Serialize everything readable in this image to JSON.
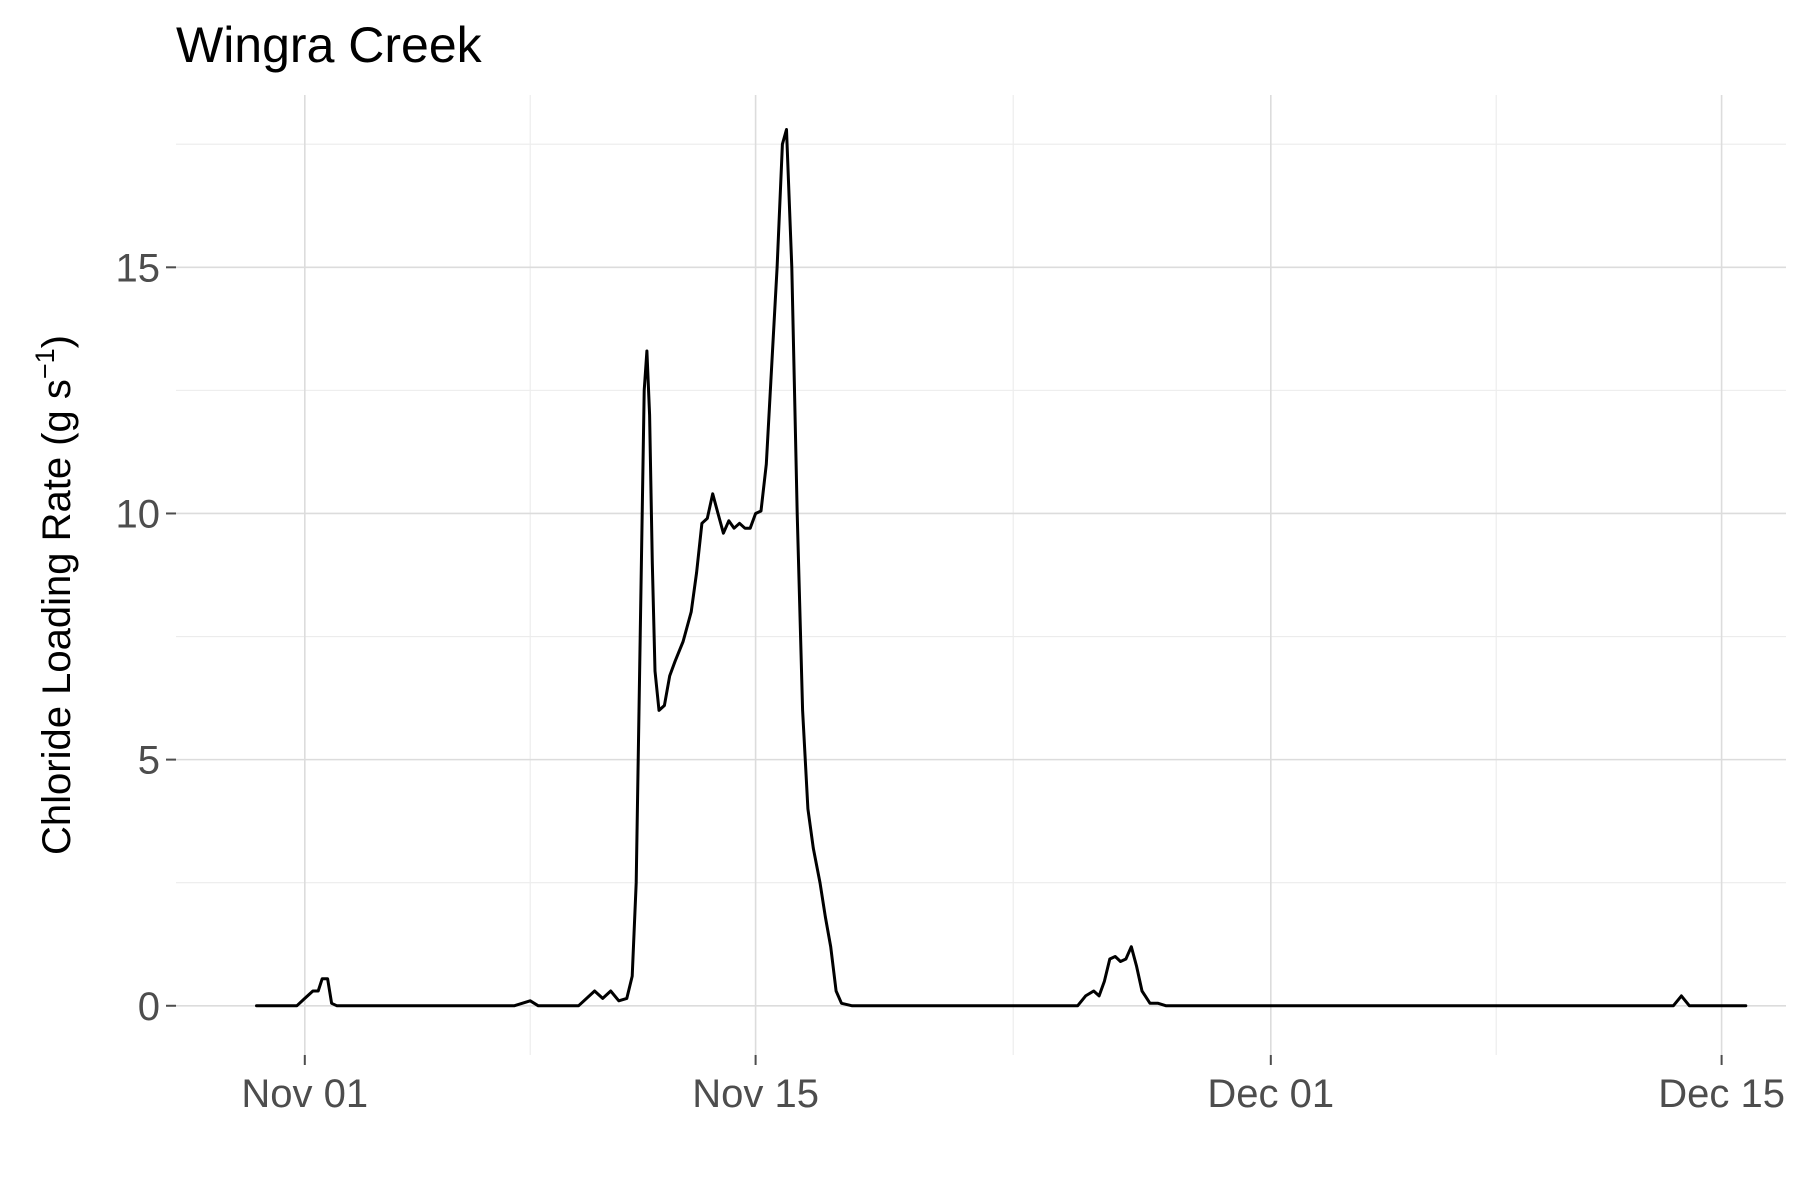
{
  "chart_data": {
    "type": "line",
    "title": "Wingra Creek",
    "xlabel": "",
    "ylabel": "Chloride Loading Rate (g s",
    "ylabel_superscript": "−1",
    "ylabel_suffix": ")",
    "xlim": [
      "2019-10-28",
      "2019-12-17"
    ],
    "ylim": [
      -1,
      18.5
    ],
    "x_ticks": [
      {
        "date": "2019-11-01",
        "label": "Nov 01"
      },
      {
        "date": "2019-11-15",
        "label": "Nov 15"
      },
      {
        "date": "2019-12-01",
        "label": "Dec 01"
      },
      {
        "date": "2019-12-15",
        "label": "Dec 15"
      }
    ],
    "x_minor_ticks": [
      "2019-11-08",
      "2019-11-23",
      "2019-12-08"
    ],
    "y_ticks": [
      0,
      5,
      10,
      15
    ],
    "y_minor_ticks": [
      2.5,
      7.5,
      12.5,
      17.5
    ],
    "grid": true,
    "series": [
      {
        "color": "#000000",
        "points": [
          [
            "2019-10-30T12:00",
            0
          ],
          [
            "2019-10-31T18:00",
            0
          ],
          [
            "2019-11-01T00:00",
            0.15
          ],
          [
            "2019-11-01T06:00",
            0.3
          ],
          [
            "2019-11-01T10:00",
            0.3
          ],
          [
            "2019-11-01T13:00",
            0.55
          ],
          [
            "2019-11-01T17:00",
            0.55
          ],
          [
            "2019-11-01T20:00",
            0.05
          ],
          [
            "2019-11-02T00:00",
            0
          ],
          [
            "2019-11-07T12:00",
            0
          ],
          [
            "2019-11-08T00:00",
            0.1
          ],
          [
            "2019-11-08T06:00",
            0
          ],
          [
            "2019-11-09T12:00",
            0
          ],
          [
            "2019-11-10T00:00",
            0.3
          ],
          [
            "2019-11-10T06:00",
            0.15
          ],
          [
            "2019-11-10T12:00",
            0.3
          ],
          [
            "2019-11-10T18:00",
            0.1
          ],
          [
            "2019-11-11T00:00",
            0.15
          ],
          [
            "2019-11-11T04:00",
            0.6
          ],
          [
            "2019-11-11T07:00",
            2.5
          ],
          [
            "2019-11-11T10:00",
            7.5
          ],
          [
            "2019-11-11T13:00",
            12.5
          ],
          [
            "2019-11-11T15:00",
            13.3
          ],
          [
            "2019-11-11T17:00",
            12.0
          ],
          [
            "2019-11-11T19:00",
            9.0
          ],
          [
            "2019-11-11T21:00",
            6.8
          ],
          [
            "2019-11-12T00:00",
            6.0
          ],
          [
            "2019-11-12T04:00",
            6.1
          ],
          [
            "2019-11-12T08:00",
            6.7
          ],
          [
            "2019-11-12T12:00",
            7.0
          ],
          [
            "2019-11-12T18:00",
            7.4
          ],
          [
            "2019-11-13T00:00",
            8.0
          ],
          [
            "2019-11-13T04:00",
            8.8
          ],
          [
            "2019-11-13T08:00",
            9.8
          ],
          [
            "2019-11-13T12:00",
            9.9
          ],
          [
            "2019-11-13T16:00",
            10.4
          ],
          [
            "2019-11-13T20:00",
            10.0
          ],
          [
            "2019-11-14T00:00",
            9.6
          ],
          [
            "2019-11-14T04:00",
            9.85
          ],
          [
            "2019-11-14T08:00",
            9.7
          ],
          [
            "2019-11-14T12:00",
            9.8
          ],
          [
            "2019-11-14T16:00",
            9.7
          ],
          [
            "2019-11-14T20:00",
            9.7
          ],
          [
            "2019-11-15T00:00",
            10.0
          ],
          [
            "2019-11-15T04:00",
            10.05
          ],
          [
            "2019-11-15T08:00",
            11.0
          ],
          [
            "2019-11-15T12:00",
            13.0
          ],
          [
            "2019-11-15T16:00",
            15.0
          ],
          [
            "2019-11-15T20:00",
            17.5
          ],
          [
            "2019-11-15T23:00",
            17.8
          ],
          [
            "2019-11-16T03:00",
            15.0
          ],
          [
            "2019-11-16T07:00",
            10.0
          ],
          [
            "2019-11-16T11:00",
            6.0
          ],
          [
            "2019-11-16T15:00",
            4.0
          ],
          [
            "2019-11-16T19:00",
            3.2
          ],
          [
            "2019-11-17T00:00",
            2.5
          ],
          [
            "2019-11-17T04:00",
            1.8
          ],
          [
            "2019-11-17T08:00",
            1.2
          ],
          [
            "2019-11-17T12:00",
            0.3
          ],
          [
            "2019-11-17T16:00",
            0.05
          ],
          [
            "2019-11-18T00:00",
            0
          ],
          [
            "2019-11-25T00:00",
            0
          ],
          [
            "2019-11-25T06:00",
            0.2
          ],
          [
            "2019-11-25T12:00",
            0.3
          ],
          [
            "2019-11-25T16:00",
            0.2
          ],
          [
            "2019-11-25T20:00",
            0.5
          ],
          [
            "2019-11-26T00:00",
            0.95
          ],
          [
            "2019-11-26T04:00",
            1.0
          ],
          [
            "2019-11-26T08:00",
            0.9
          ],
          [
            "2019-11-26T12:00",
            0.95
          ],
          [
            "2019-11-26T16:00",
            1.2
          ],
          [
            "2019-11-26T20:00",
            0.8
          ],
          [
            "2019-11-27T00:00",
            0.3
          ],
          [
            "2019-11-27T06:00",
            0.05
          ],
          [
            "2019-11-27T12:00",
            0.05
          ],
          [
            "2019-11-27T18:00",
            0
          ],
          [
            "2019-12-13T12:00",
            0
          ],
          [
            "2019-12-13T18:00",
            0.2
          ],
          [
            "2019-12-14T00:00",
            0
          ],
          [
            "2019-12-15T18:00",
            0
          ]
        ]
      }
    ]
  }
}
